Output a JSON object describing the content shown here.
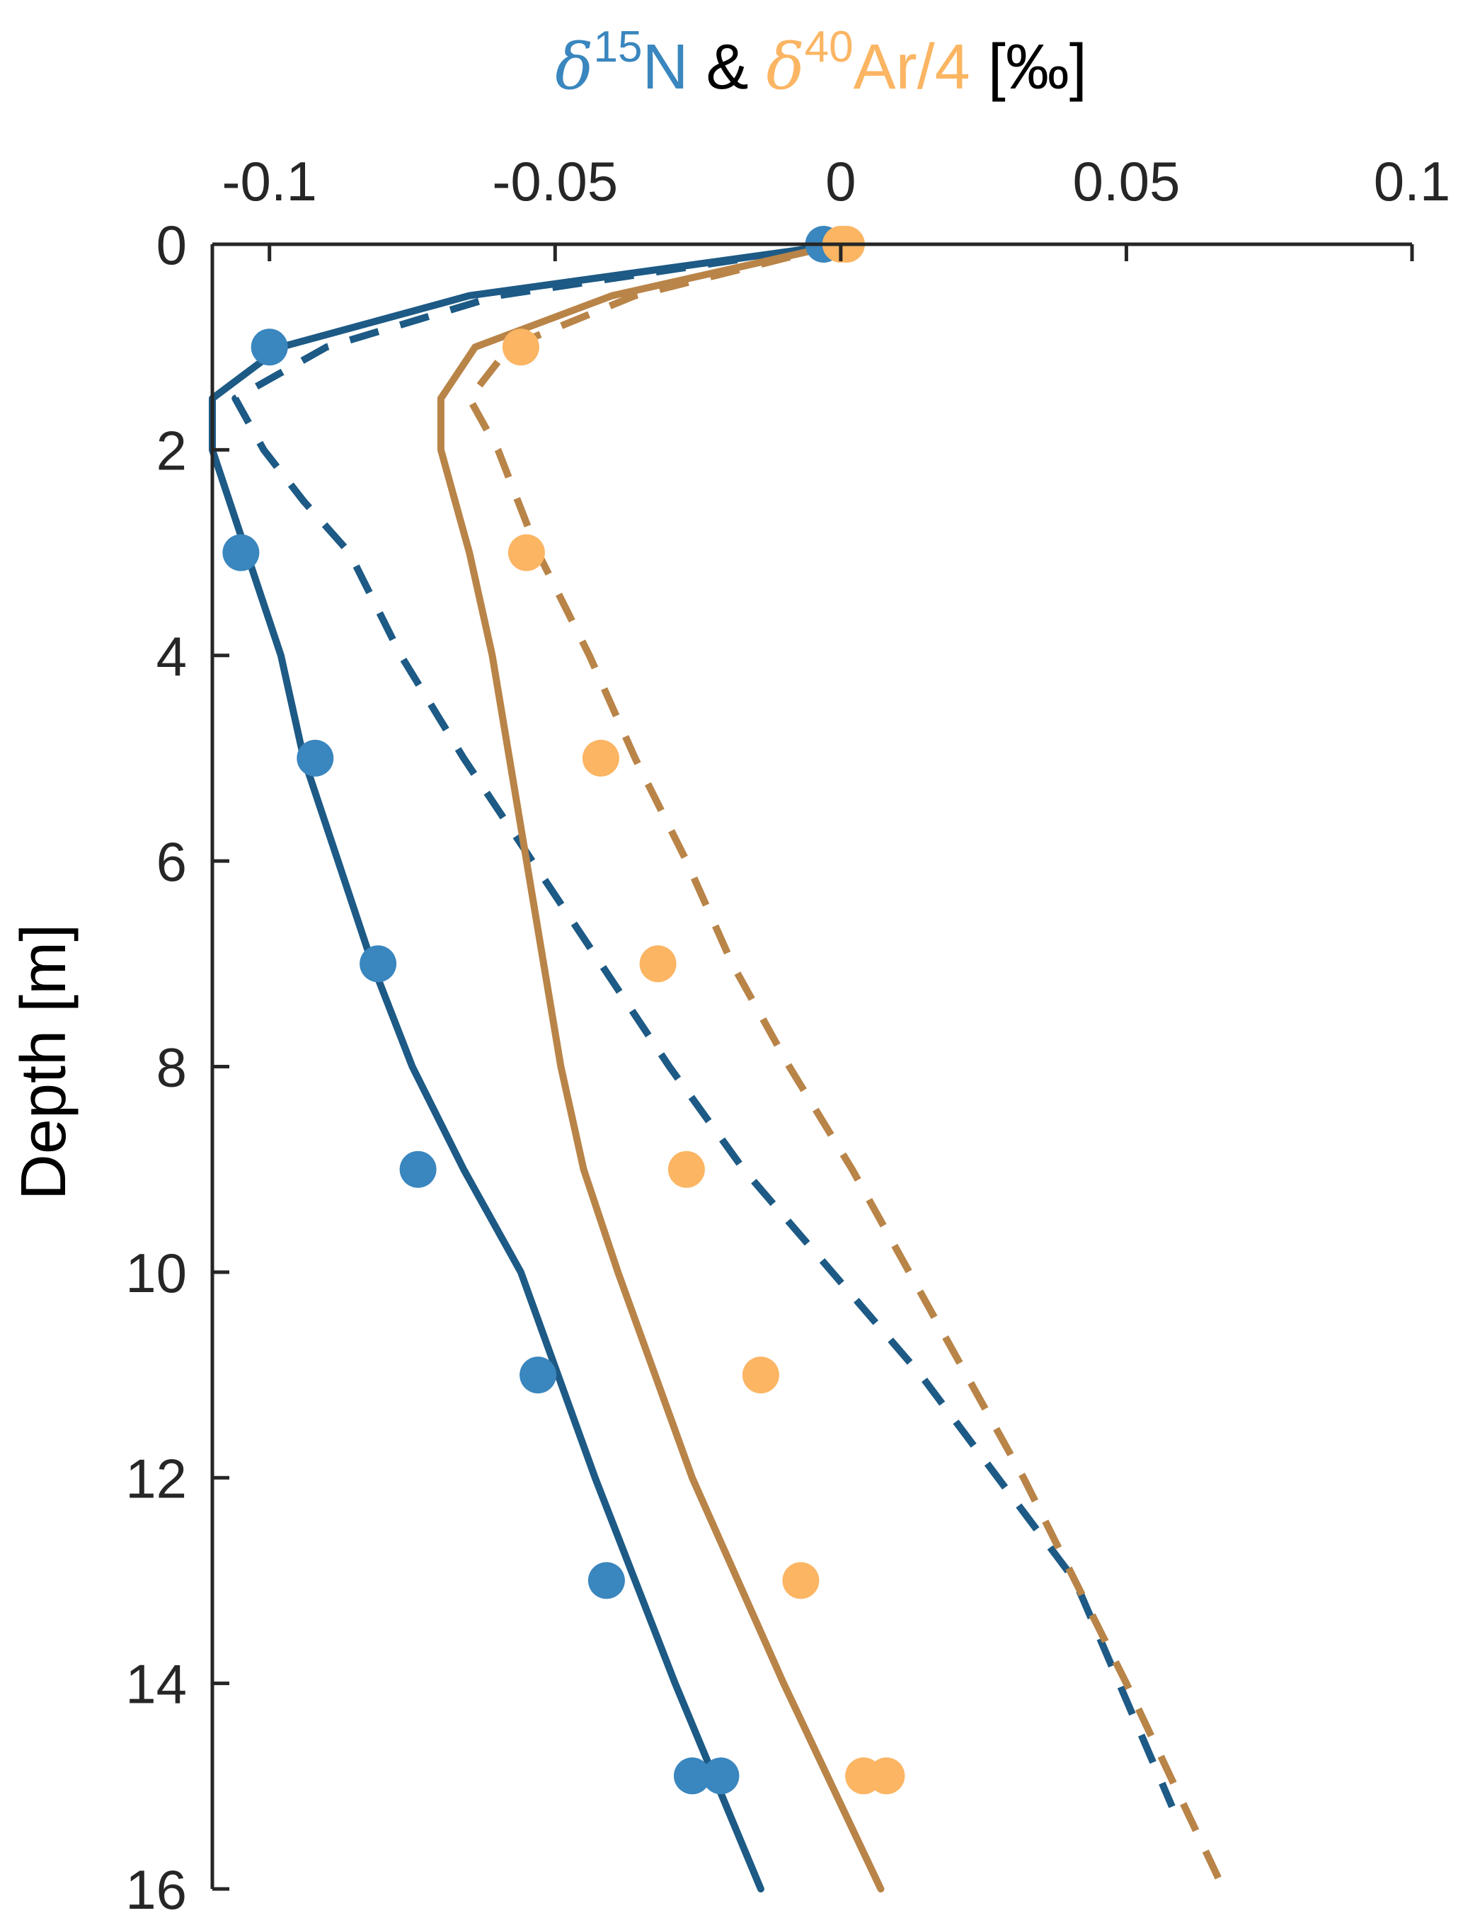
{
  "chart_data": {
    "type": "line",
    "title": {
      "n_symbol": "δ",
      "n_superscript": "15",
      "n_element": "N",
      "connector": " & ",
      "ar_symbol": "δ",
      "ar_superscript": "40",
      "ar_element": "Ar/4",
      "unit": " [‰]"
    },
    "xlabel": "",
    "ylabel": "Depth [m]",
    "x_axis_position": "top",
    "y_reversed": true,
    "xlim": [
      -0.11,
      0.1
    ],
    "ylim": [
      0,
      16
    ],
    "xticks": [
      -0.1,
      -0.05,
      0,
      0.05,
      0.1
    ],
    "xtick_labels": [
      "-0.1",
      "-0.05",
      "0",
      "0.05",
      "0.1"
    ],
    "yticks": [
      0,
      2,
      4,
      6,
      8,
      10,
      12,
      14,
      16
    ],
    "ytick_labels": [
      "0",
      "2",
      "4",
      "6",
      "8",
      "10",
      "12",
      "14",
      "16"
    ],
    "grid": false,
    "colors": {
      "n_points": "#3a86be",
      "n_line": "#1d5a85",
      "ar_points": "#fbb563",
      "ar_line": "#b98448",
      "title_n": "#3a86be",
      "title_ar": "#fbb563",
      "title_text": "#000000"
    },
    "series": [
      {
        "kind": "scatter",
        "color_key": "n_points",
        "x": [
          -0.003,
          -0.1,
          -0.105,
          -0.092,
          -0.081,
          -0.074,
          -0.053,
          -0.041,
          -0.026,
          -0.021
        ],
        "y": [
          0,
          1,
          3,
          5,
          7,
          9,
          11,
          13,
          14.9,
          14.9
        ]
      },
      {
        "kind": "scatter",
        "color_key": "ar_points",
        "x": [
          0,
          0.001,
          -0.056,
          -0.055,
          -0.042,
          -0.032,
          -0.027,
          -0.014,
          -0.007,
          0.004,
          0.008
        ],
        "y": [
          0,
          0,
          1,
          3,
          5,
          7,
          9,
          11,
          13,
          14.9,
          14.9
        ]
      },
      {
        "kind": "line",
        "style": "solid",
        "color_key": "n_line",
        "x": [
          0,
          -0.065,
          -0.098,
          -0.11,
          -0.11,
          -0.104,
          -0.098,
          -0.094,
          -0.088,
          -0.082,
          -0.075,
          -0.066,
          -0.056,
          -0.043,
          -0.029,
          -0.014
        ],
        "y": [
          0,
          0.5,
          1,
          1.5,
          2,
          3,
          4,
          5,
          6,
          7,
          8,
          9,
          10,
          12,
          14,
          16
        ]
      },
      {
        "kind": "line",
        "style": "dashed",
        "color_key": "n_line",
        "x": [
          0,
          -0.06,
          -0.09,
          -0.106,
          -0.101,
          -0.094,
          -0.086,
          -0.077,
          -0.066,
          -0.054,
          -0.042,
          -0.03,
          -0.017,
          0.014,
          0.041,
          0.058
        ],
        "y": [
          0,
          0.5,
          1,
          1.5,
          2,
          2.5,
          3,
          4,
          5,
          6,
          7,
          8,
          9,
          11,
          13,
          15.2
        ]
      },
      {
        "kind": "line",
        "style": "solid",
        "color_key": "ar_line",
        "x": [
          0,
          -0.04,
          -0.064,
          -0.07,
          -0.07,
          -0.065,
          -0.061,
          -0.058,
          -0.055,
          -0.052,
          -0.049,
          -0.045,
          -0.039,
          -0.026,
          -0.01,
          0.007
        ],
        "y": [
          0,
          0.5,
          1,
          1.5,
          2,
          3,
          4,
          5,
          6,
          7,
          8,
          9,
          10,
          12,
          14,
          16
        ]
      },
      {
        "kind": "line",
        "style": "dashed",
        "color_key": "ar_line",
        "x": [
          0,
          -0.036,
          -0.058,
          -0.065,
          -0.06,
          -0.053,
          -0.044,
          -0.036,
          -0.027,
          -0.019,
          -0.009,
          0.002,
          0.012,
          0.032,
          0.05,
          0.067
        ],
        "y": [
          0,
          0.5,
          1,
          1.5,
          2,
          3,
          4,
          5,
          6,
          7,
          8,
          9,
          10,
          12,
          14,
          16
        ]
      }
    ]
  }
}
